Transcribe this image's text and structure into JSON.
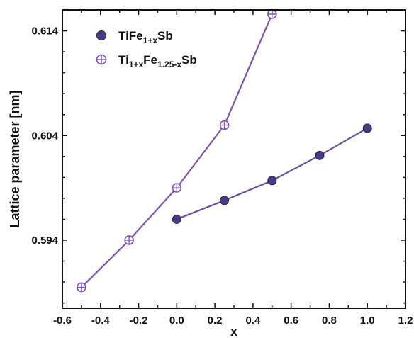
{
  "chart_data": {
    "type": "scatter",
    "title": "",
    "xlabel": "x",
    "ylabel": "Lattice parameter [nm]",
    "xlim": [
      -0.6,
      1.2
    ],
    "ylim": [
      0.5875,
      0.616
    ],
    "x_ticks": [
      -0.6,
      -0.4,
      -0.2,
      0.0,
      0.2,
      0.4,
      0.6,
      0.8,
      1.0,
      1.2
    ],
    "x_tick_labels": [
      "-0.6",
      "-0.4",
      "-0.2",
      "0.0",
      "0.2",
      "0.4",
      "0.6",
      "0.8",
      "1.0",
      "1.2"
    ],
    "y_ticks": [
      0.594,
      0.604,
      0.614
    ],
    "y_tick_labels": [
      "0.594",
      "0.604",
      "0.614"
    ],
    "grid": false,
    "legend_position": "top-left",
    "series": [
      {
        "name_parts": [
          {
            "text": "TiFe",
            "sub": false
          },
          {
            "text": "1+x",
            "sub": true
          },
          {
            "text": "Sb",
            "sub": false
          }
        ],
        "marker": "filled-circle",
        "color": "#6a4fa3",
        "marker_fill": "#4b3a8c",
        "x": [
          0.0,
          0.25,
          0.5,
          0.75,
          1.0
        ],
        "y": [
          0.596,
          0.5978,
          0.5997,
          0.6021,
          0.6047
        ]
      },
      {
        "name_parts": [
          {
            "text": "Ti",
            "sub": false
          },
          {
            "text": "1+x",
            "sub": true
          },
          {
            "text": "Fe",
            "sub": false
          },
          {
            "text": "1.25-x",
            "sub": true
          },
          {
            "text": "Sb",
            "sub": false
          }
        ],
        "marker": "crossed-circle",
        "color": "#7b52b0",
        "marker_fill": "#ffffff",
        "x": [
          -0.5,
          -0.25,
          0.0,
          0.25,
          0.5
        ],
        "y": [
          0.5895,
          0.594,
          0.599,
          0.605,
          0.6156
        ]
      }
    ]
  }
}
